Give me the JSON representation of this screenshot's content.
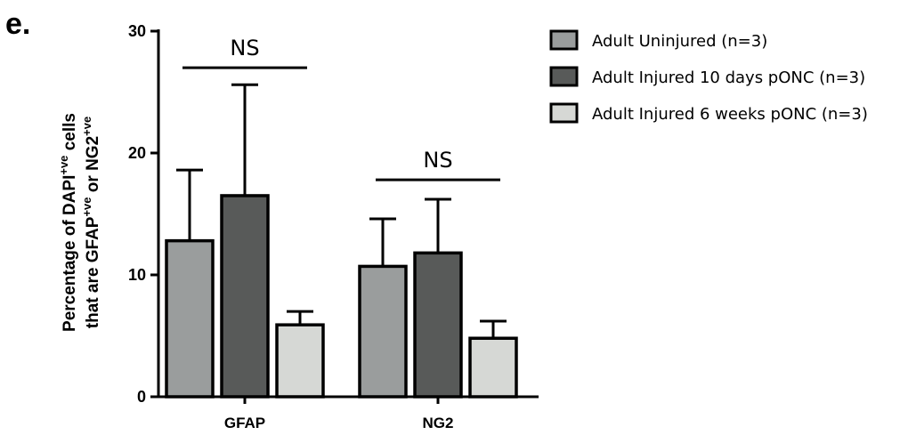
{
  "panel_label": "e.",
  "chart_data": {
    "type": "bar",
    "categories": [
      "GFAP",
      "NG2"
    ],
    "ylabel": {
      "line1_pre": "Percentage of DAPI",
      "line1_sup": "+ve",
      "line1_post": " cells",
      "line2_pre": "that are GFAP",
      "line2_sup1": "+ve",
      "line2_mid": " or NG2",
      "line2_sup2": "+ve"
    },
    "ylim": [
      0,
      30
    ],
    "yticks": [
      0,
      10,
      20,
      30
    ],
    "ytick_labels": [
      "0",
      "10",
      "20",
      "30"
    ],
    "series": [
      {
        "name": "Adult Uninjured (n=3)",
        "values": [
          12.8,
          10.7
        ],
        "errors": [
          5.8,
          3.9
        ],
        "color": "#9a9d9d"
      },
      {
        "name": "Adult Injured 10 days pONC (n=3)",
        "values": [
          16.5,
          11.8
        ],
        "errors": [
          9.1,
          4.4
        ],
        "color": "#585a59"
      },
      {
        "name": "Adult Injured 6 weeks pONC (n=3)",
        "values": [
          5.9,
          4.8
        ],
        "errors": [
          1.1,
          1.4
        ],
        "color": "#d6d8d5"
      }
    ],
    "annotations": [
      {
        "text": "NS",
        "category": "GFAP",
        "y_level": 27.0
      },
      {
        "text": "NS",
        "category": "NG2",
        "y_level": 17.8
      }
    ],
    "legend_position": "top-right",
    "grid": false
  }
}
